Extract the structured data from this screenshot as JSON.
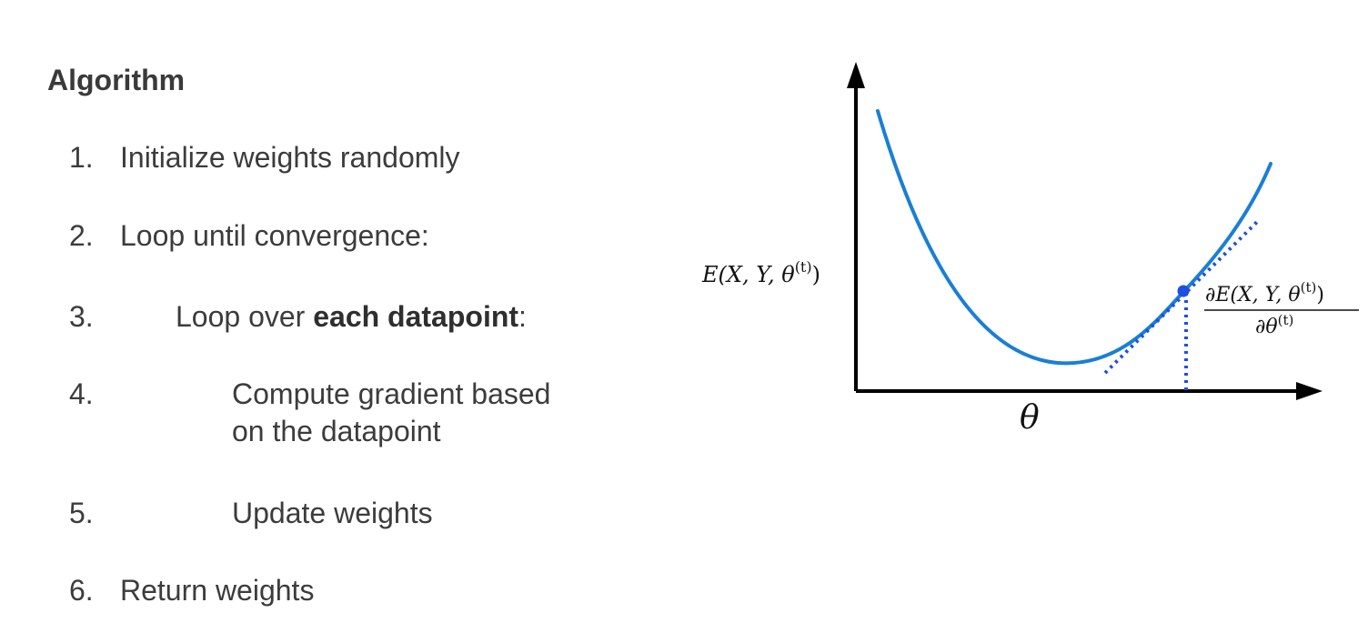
{
  "algorithm": {
    "title": "Algorithm",
    "steps": [
      {
        "number": "1.",
        "text": "Initialize weights randomly"
      },
      {
        "number": "2.",
        "text": "Loop until convergence:"
      },
      {
        "number": "3.",
        "text_before": "Loop over ",
        "text_bold": "each datapoint",
        "text_after": ":"
      },
      {
        "number": "4.",
        "line1": "Compute gradient based",
        "line2": "on the datapoint"
      },
      {
        "number": "5.",
        "text": "Update weights"
      },
      {
        "number": "6.",
        "text": "Return weights"
      }
    ]
  },
  "diagram": {
    "x_axis_label": "θ",
    "y_axis_label": {
      "base": "E(X, Y, θ",
      "superscript": "(t)",
      "close": ")"
    },
    "gradient_label": {
      "numerator_base": "∂E(X, Y, θ",
      "numerator_superscript": "(t)",
      "numerator_close": ")",
      "denominator_base": "∂θ",
      "denominator_superscript": "(t)"
    },
    "colors": {
      "curve": "#1a7fd4",
      "tangent": "#1f4fe0",
      "point": "#1f4fe0",
      "axis": "#000000"
    }
  }
}
